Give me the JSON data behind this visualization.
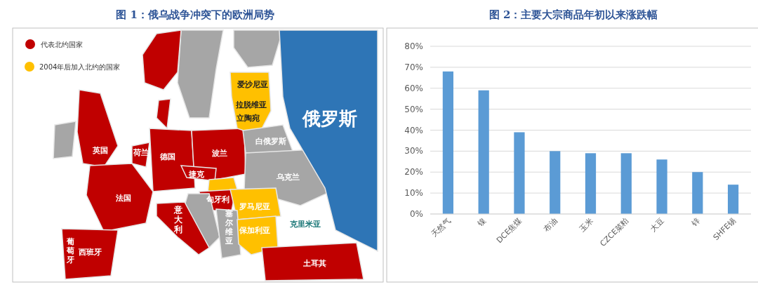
{
  "chart_data": [
    {
      "type": "other",
      "title": "图 1：俄乌战争冲突下的欧洲局势",
      "annotations": [
        "代表北约国家",
        "2004年后加入北约的国家",
        "爱沙尼亚",
        "拉脱维亚",
        "立陶宛",
        "俄罗斯",
        "白俄罗斯",
        "英国",
        "荷兰",
        "德国",
        "波兰",
        "捷克",
        "乌克兰",
        "法国",
        "匈牙利",
        "罗马尼亚",
        "意大利",
        "塞尔维亚",
        "克里米亚",
        "保加利亚",
        "西班牙",
        "葡萄牙",
        "土耳其"
      ]
    },
    {
      "type": "bar",
      "title": "图 2：主要大宗商品年初以来涨跌幅",
      "categories": [
        "天然气",
        "镍",
        "DCE焦煤",
        "布油",
        "玉米",
        "CZCE菜粕",
        "大豆",
        "锌",
        "SHFE锡"
      ],
      "values": [
        68,
        59,
        39,
        30,
        29,
        29,
        26,
        20,
        14
      ],
      "color": "#5b9bd5",
      "ylim": [
        0,
        80
      ],
      "yticks": [
        {
          "value": 0,
          "label": "0%"
        },
        {
          "value": 10,
          "label": "10%"
        },
        {
          "value": 20,
          "label": "20%"
        },
        {
          "value": 30,
          "label": "30%"
        },
        {
          "value": 40,
          "label": "40%"
        },
        {
          "value": 50,
          "label": "50%"
        },
        {
          "value": 60,
          "label": "60%"
        },
        {
          "value": 70,
          "label": "70%"
        },
        {
          "value": 80,
          "label": "80%"
        }
      ],
      "grid": "y"
    }
  ]
}
